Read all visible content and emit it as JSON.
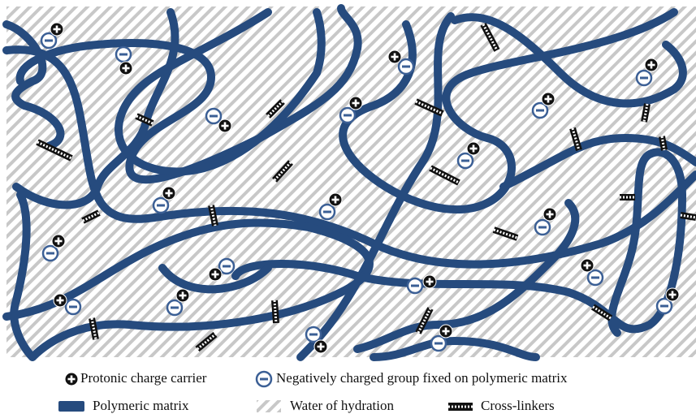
{
  "legend": [
    {
      "label": "Protonic charge carrier"
    },
    {
      "label": "Negatively charged group fixed on polymeric matrix"
    },
    {
      "label": "Polymeric matrix"
    },
    {
      "label": "Water of hydration"
    },
    {
      "label": "Cross-linkers"
    }
  ]
}
